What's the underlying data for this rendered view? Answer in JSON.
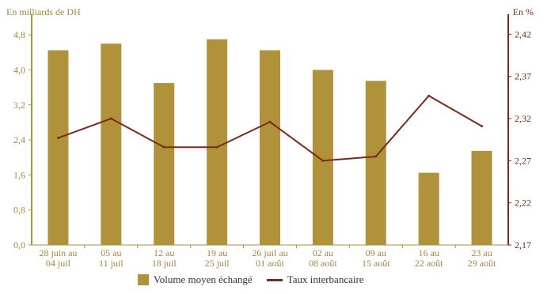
{
  "chart_data": {
    "type": "bar+line",
    "left_unit": "En milliards de DH",
    "right_unit": "En %",
    "categories": [
      [
        "28 juin au",
        "04 juil"
      ],
      [
        "05 au",
        "11 juil"
      ],
      [
        "12 au",
        "18 juil"
      ],
      [
        "19 au",
        "25 juil"
      ],
      [
        "26 juil au",
        "01 août"
      ],
      [
        "02 au",
        "08 août"
      ],
      [
        "09 au",
        "15 août"
      ],
      [
        "16 au",
        "22 août"
      ],
      [
        "23 au",
        "29 août"
      ]
    ],
    "series": [
      {
        "name": "Volume moyen échangé",
        "type": "bar",
        "axis": "left",
        "values": [
          4.45,
          4.6,
          3.7,
          4.7,
          4.45,
          4.0,
          3.75,
          1.65,
          2.15
        ]
      },
      {
        "name": "Taux interbancaire",
        "type": "line",
        "axis": "right",
        "values": [
          2.297,
          2.32,
          2.286,
          2.286,
          2.316,
          2.27,
          2.275,
          2.347,
          2.311
        ]
      }
    ],
    "left_axis": {
      "ylim": [
        0,
        5.2
      ],
      "ticks": [
        "0,0",
        "0,8",
        "1,6",
        "2,4",
        "3,2",
        "4,0",
        "4,8"
      ],
      "tick_values": [
        0,
        0.8,
        1.6,
        2.4,
        3.2,
        4.0,
        4.8
      ]
    },
    "right_axis": {
      "ylim": [
        2.17,
        2.44
      ],
      "ticks": [
        "2,17",
        "2,22",
        "2,27",
        "2,32",
        "2,37",
        "2,42"
      ],
      "tick_values": [
        2.17,
        2.22,
        2.27,
        2.32,
        2.37,
        2.42
      ]
    },
    "legend_position": "bottom-center",
    "grid": false
  },
  "colors": {
    "bar": "#b0923a",
    "line": "#7a2a18",
    "axis_left": "#b0923a",
    "axis_right": "#7a2a18"
  }
}
